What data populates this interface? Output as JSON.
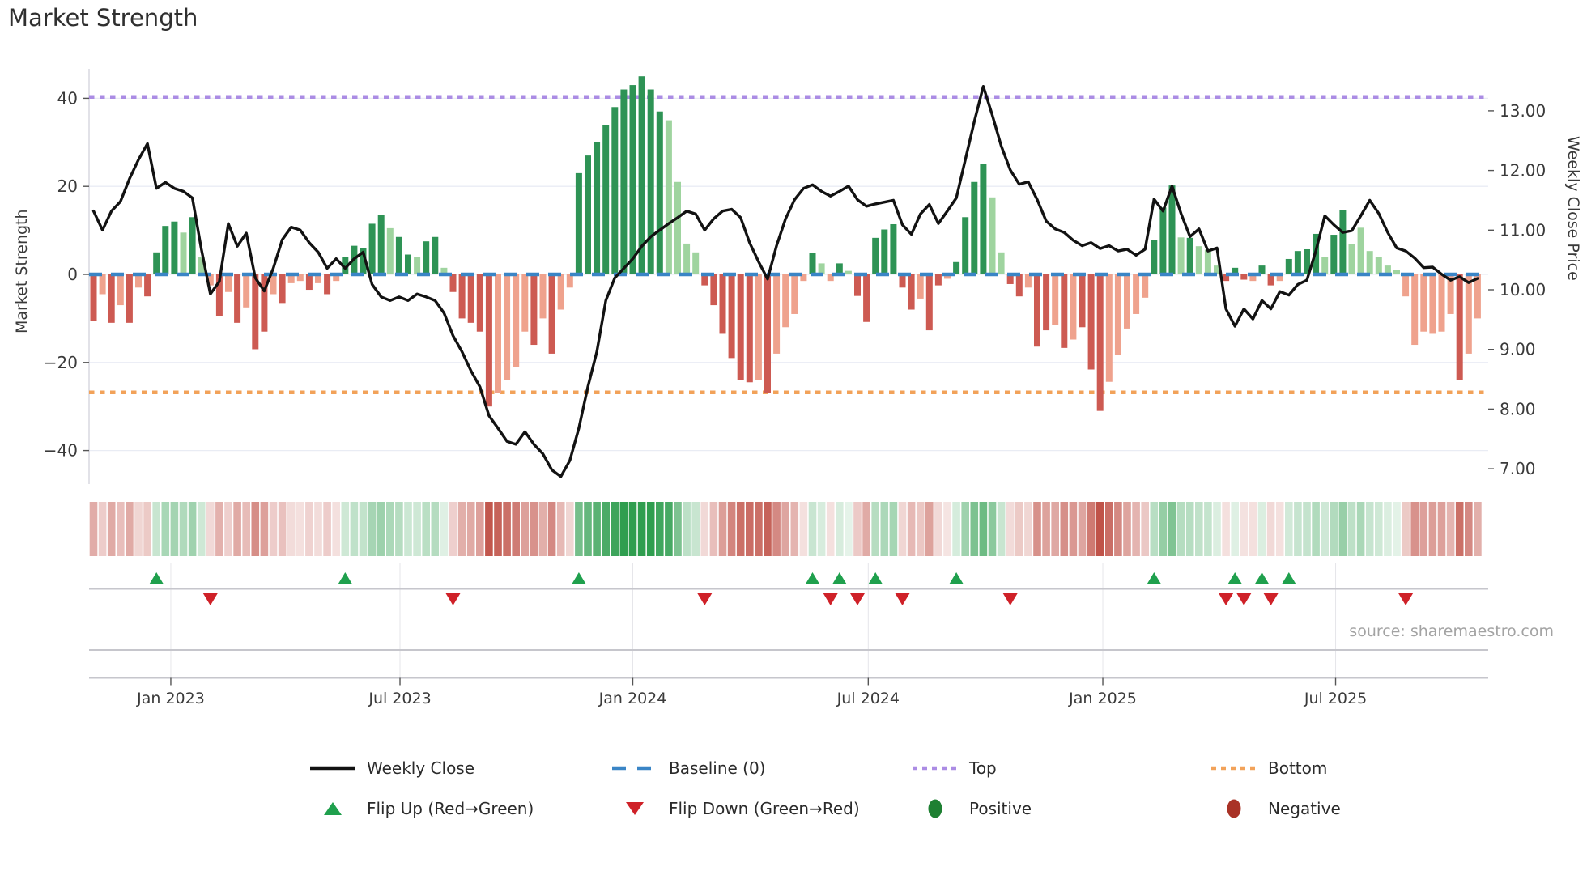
{
  "title": "Market Strength",
  "source": "source: sharemaestro.com",
  "left_axis": {
    "label": "Market Strength",
    "ticks": [
      {
        "label": "40",
        "value": 40
      },
      {
        "label": "20",
        "value": 20
      },
      {
        "label": "0",
        "value": 0
      },
      {
        "label": "−20",
        "value": -20
      },
      {
        "label": "−40",
        "value": -40
      }
    ]
  },
  "right_axis": {
    "label": "Weekly Close Price",
    "ticks": [
      {
        "label": "13.00",
        "value": 13
      },
      {
        "label": "12.00",
        "value": 12
      },
      {
        "label": "11.00",
        "value": 11
      },
      {
        "label": "10.00",
        "value": 10
      },
      {
        "label": "9.00",
        "value": 9
      },
      {
        "label": "8.00",
        "value": 8
      },
      {
        "label": "7.00",
        "value": 7
      }
    ]
  },
  "x_axis": {
    "ticks": [
      {
        "label": "Jan 2023",
        "week": 8.6
      },
      {
        "label": "Jul 2023",
        "week": 34.1
      },
      {
        "label": "Jan 2024",
        "week": 60.0
      },
      {
        "label": "Jul 2024",
        "week": 86.2
      },
      {
        "label": "Jan 2025",
        "week": 112.3
      },
      {
        "label": "Jul 2025",
        "week": 138.2
      }
    ]
  },
  "legend": {
    "row1": [
      {
        "label": "Weekly Close"
      },
      {
        "label": "Baseline (0)"
      },
      {
        "label": "Top"
      },
      {
        "label": "Bottom"
      }
    ],
    "row2": [
      {
        "label": "Flip Up (Red→Green)"
      },
      {
        "label": "Flip Down (Green→Red)"
      },
      {
        "label": "Positive"
      },
      {
        "label": "Negative"
      }
    ]
  },
  "colors": {
    "bar_pos_dark": "#2e9355",
    "bar_pos_light": "#9fd49f",
    "bar_neg_dark": "#cd5a52",
    "bar_neg_light": "#efa28d",
    "price_line": "#121212",
    "baseline": "#3a85c6",
    "top_line": "#ab8ce4",
    "bottom_line": "#f2a259",
    "flip_up": "#1fa04d",
    "flip_down": "#cf2128",
    "dot_positive": "#1e8032",
    "dot_negative": "#a93226",
    "grid": "#e9ecf4",
    "spine": "#c6c6cc"
  },
  "chart_data": {
    "type": "bar+line",
    "title": "Market Strength",
    "n_weeks": 155,
    "baseline": 0,
    "top_level": 40.3,
    "bottom_level": -26.8,
    "left_ylim": [
      -47.5,
      46.5
    ],
    "right_ylim": [
      6.74,
      13.7
    ],
    "legend_position": "bottom-center",
    "grid": "horizontal-only",
    "series": [
      {
        "name": "Market Strength",
        "type": "bar",
        "axis": "left",
        "values": [
          -10.5,
          -4.5,
          -11,
          -7,
          -11,
          -3,
          -5,
          5,
          11,
          12,
          9.5,
          13,
          4,
          -2.5,
          -9.5,
          -4,
          -11,
          -7.5,
          -17,
          -13,
          -4.5,
          -6.5,
          -2,
          -1.5,
          -3.5,
          -2,
          -4.5,
          -1.5,
          4,
          6.5,
          6,
          11.5,
          13.5,
          10.5,
          8.5,
          4.5,
          4,
          7.5,
          8.5,
          1.5,
          -4,
          -10,
          -11,
          -13,
          -30,
          -27,
          -24,
          -21,
          -13,
          -16,
          -10,
          -18,
          -8,
          -3,
          23,
          27,
          30,
          34,
          38,
          42,
          43,
          45,
          42,
          37,
          35,
          21,
          7,
          5,
          -2.5,
          -7,
          -13.5,
          -19,
          -24,
          -24.5,
          -24,
          -27,
          -18,
          -12,
          -9,
          -1.5,
          4.9,
          2.5,
          -1.5,
          2.5,
          0.8,
          -4.9,
          -10.8,
          8.3,
          10.2,
          11.4,
          -3,
          -8,
          -5.5,
          -12.7,
          -2.5,
          -1,
          2.8,
          13,
          21,
          25,
          17.5,
          5,
          -2.2,
          -5,
          -3,
          -16.4,
          -12.7,
          -11.4,
          -16.7,
          -14.8,
          -12,
          -21.6,
          -31,
          -24.4,
          -18.2,
          -12.3,
          -9,
          -5.3,
          7.9,
          15.2,
          20.2,
          8.4,
          8.3,
          6.4,
          5.6,
          2,
          -1.5,
          1.5,
          -1.2,
          -1.5,
          2,
          -2.5,
          -1.5,
          3.5,
          5.3,
          5.7,
          9.2,
          3.9,
          9,
          14.6,
          6.9,
          10.6,
          5.3,
          4,
          2,
          1,
          -5,
          -16,
          -13,
          -13.5,
          -13,
          -9,
          -24,
          -18,
          -10
        ],
        "shade_blocks": [
          "dldldld",
          "dddldl",
          "ldldlddldlldldl",
          "dddddlddlddl",
          "dddddlllldldll",
          "ddddddddddllll",
          "ddddddldllll",
          "dlldlddddd",
          "ddlddlddddll",
          "ddlddldldddlllll",
          "dddldlll",
          "dddlddl",
          "ddddlddllllll",
          "lllllldll"
        ]
      },
      {
        "name": "Weekly Close",
        "type": "line",
        "axis": "right",
        "values": [
          11.32,
          11.0,
          11.32,
          11.48,
          11.86,
          12.18,
          12.45,
          11.7,
          11.8,
          11.7,
          11.65,
          11.54,
          10.68,
          9.93,
          10.14,
          11.11,
          10.73,
          10.95,
          10.2,
          9.98,
          10.36,
          10.84,
          11.05,
          11.0,
          10.79,
          10.63,
          10.36,
          10.52,
          10.36,
          10.52,
          10.63,
          10.09,
          9.88,
          9.82,
          9.88,
          9.82,
          9.93,
          9.88,
          9.82,
          9.61,
          9.23,
          8.96,
          8.64,
          8.37,
          7.89,
          7.68,
          7.46,
          7.41,
          7.62,
          7.41,
          7.25,
          6.98,
          6.87,
          7.14,
          7.68,
          8.37,
          8.96,
          9.82,
          10.2,
          10.36,
          10.52,
          10.73,
          10.89,
          11.0,
          11.11,
          11.21,
          11.32,
          11.27,
          11.0,
          11.19,
          11.32,
          11.35,
          11.21,
          10.79,
          10.47,
          10.18,
          10.74,
          11.19,
          11.51,
          11.7,
          11.76,
          11.65,
          11.57,
          11.65,
          11.74,
          11.51,
          11.4,
          11.44,
          11.47,
          11.5,
          11.09,
          10.93,
          11.27,
          11.43,
          11.11,
          11.32,
          11.54,
          12.18,
          12.82,
          13.41,
          12.93,
          12.41,
          12.01,
          11.77,
          11.81,
          11.51,
          11.15,
          11.02,
          10.96,
          10.83,
          10.74,
          10.79,
          10.69,
          10.74,
          10.65,
          10.68,
          10.58,
          10.68,
          11.52,
          11.32,
          11.74,
          11.28,
          10.89,
          11.02,
          10.65,
          10.7,
          9.68,
          9.39,
          9.68,
          9.51,
          9.82,
          9.68,
          9.97,
          9.91,
          10.09,
          10.16,
          10.65,
          11.24,
          11.09,
          10.96,
          10.99,
          11.24,
          11.5,
          11.28,
          10.96,
          10.7,
          10.65,
          10.53,
          10.37,
          10.38,
          10.26,
          10.16,
          10.22,
          10.12,
          10.19
        ]
      }
    ],
    "flip_up_weeks": [
      7,
      28,
      54,
      80,
      83,
      87,
      96,
      118,
      127,
      130,
      133
    ],
    "flip_down_weeks": [
      13,
      40,
      68,
      82,
      85,
      90,
      102,
      126,
      128,
      131,
      146
    ],
    "heatmap": {
      "note": "weekly strength strip, same values as bar series"
    }
  }
}
